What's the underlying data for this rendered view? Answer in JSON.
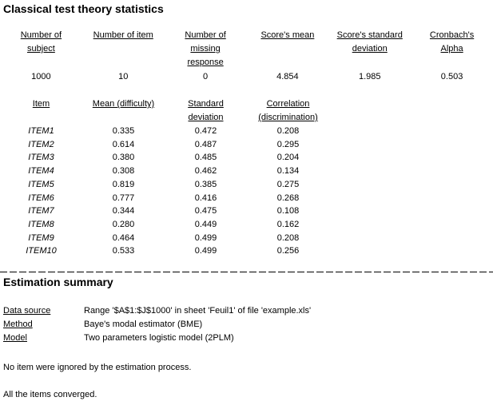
{
  "colors": {
    "text": "#000000",
    "background": "#ffffff"
  },
  "title": "Classical test theory statistics",
  "summary": {
    "headers": [
      "Number of\nsubject",
      "Number of item",
      "Number of\nmissing\nresponse",
      "Score's mean",
      "Score's standard\ndeviation",
      "Cronbach's\nAlpha"
    ],
    "values": [
      "1000",
      "10",
      "0",
      "4.854",
      "1.985",
      "0.503"
    ]
  },
  "items": {
    "headers": [
      "Item",
      "Mean (difficulty)",
      "Standard\ndeviation",
      "Correlation\n(discrimination)"
    ],
    "rows": [
      {
        "name": "ITEM1",
        "mean": "0.335",
        "sd": "0.472",
        "corr": "0.208"
      },
      {
        "name": "ITEM2",
        "mean": "0.614",
        "sd": "0.487",
        "corr": "0.295"
      },
      {
        "name": "ITEM3",
        "mean": "0.380",
        "sd": "0.485",
        "corr": "0.204"
      },
      {
        "name": "ITEM4",
        "mean": "0.308",
        "sd": "0.462",
        "corr": "0.134"
      },
      {
        "name": "ITEM5",
        "mean": "0.819",
        "sd": "0.385",
        "corr": "0.275"
      },
      {
        "name": "ITEM6",
        "mean": "0.777",
        "sd": "0.416",
        "corr": "0.268"
      },
      {
        "name": "ITEM7",
        "mean": "0.344",
        "sd": "0.475",
        "corr": "0.108"
      },
      {
        "name": "ITEM8",
        "mean": "0.280",
        "sd": "0.449",
        "corr": "0.162"
      },
      {
        "name": "ITEM9",
        "mean": "0.464",
        "sd": "0.499",
        "corr": "0.208"
      },
      {
        "name": "ITEM10",
        "mean": "0.533",
        "sd": "0.499",
        "corr": "0.256"
      }
    ]
  },
  "estimation": {
    "title": "Estimation summary",
    "entries": [
      {
        "label": "Data source",
        "value": "Range '$A$1:$J$1000' in sheet 'Feuil1' of file 'example.xls'"
      },
      {
        "label": "Method",
        "value": "Baye's modal estimator (BME)"
      },
      {
        "label": "Model",
        "value": "Two parameters logistic model (2PLM)"
      }
    ],
    "notes": [
      "No item were ignored by the estimation process.",
      "All the items converged."
    ]
  }
}
